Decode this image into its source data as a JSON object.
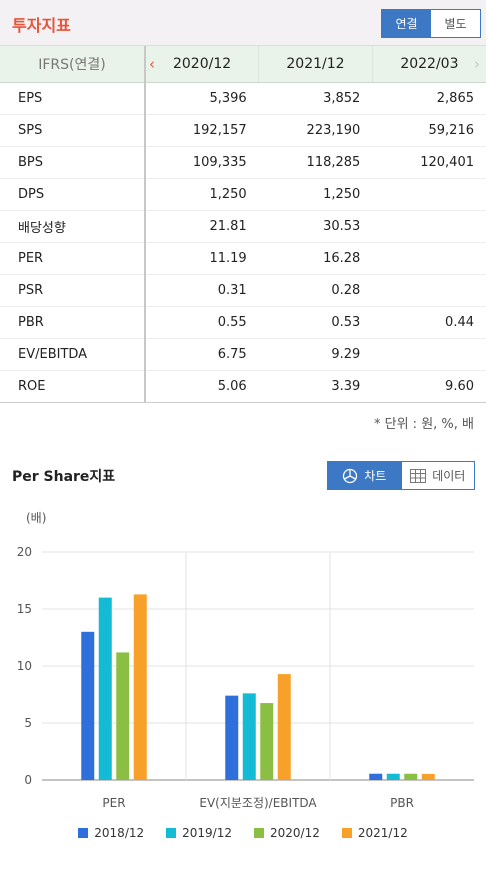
{
  "header": {
    "title": "투자지표",
    "toggle": {
      "consolidated": "연결",
      "separate": "별도"
    }
  },
  "table": {
    "label_header": "IFRS(연결)",
    "columns": [
      "2020/12",
      "2021/12",
      "2022/03"
    ],
    "rows": [
      {
        "label": "EPS",
        "values": [
          "5,396",
          "3,852",
          "2,865"
        ]
      },
      {
        "label": "SPS",
        "values": [
          "192,157",
          "223,190",
          "59,216"
        ]
      },
      {
        "label": "BPS",
        "values": [
          "109,335",
          "118,285",
          "120,401"
        ]
      },
      {
        "label": "DPS",
        "values": [
          "1,250",
          "1,250",
          ""
        ]
      },
      {
        "label": "배당성향",
        "values": [
          "21.81",
          "30.53",
          ""
        ]
      },
      {
        "label": "PER",
        "values": [
          "11.19",
          "16.28",
          ""
        ]
      },
      {
        "label": "PSR",
        "values": [
          "0.31",
          "0.28",
          ""
        ]
      },
      {
        "label": "PBR",
        "values": [
          "0.55",
          "0.53",
          "0.44"
        ]
      },
      {
        "label": "EV/EBITDA",
        "values": [
          "6.75",
          "9.29",
          ""
        ]
      },
      {
        "label": "ROE",
        "values": [
          "5.06",
          "3.39",
          "9.60"
        ]
      }
    ],
    "unit_note": "* 단위 : 원, %, 배"
  },
  "chart_section": {
    "title": "Per Share지표",
    "chart_label": "차트",
    "data_label": "데이터"
  },
  "chart_data": {
    "type": "bar",
    "ylabel": "(배)",
    "ylim": [
      0,
      20
    ],
    "yticks": [
      "0",
      "5",
      "10",
      "15",
      "20"
    ],
    "grid": true,
    "legend_position": "bottom",
    "categories": [
      "PER",
      "EV(지분조정)/EBITDA",
      "PBR"
    ],
    "series": [
      {
        "name": "2018/12",
        "color": "#2e6fdb",
        "values": [
          13.0,
          7.4,
          0.55
        ]
      },
      {
        "name": "2019/12",
        "color": "#13bcd4",
        "values": [
          16.0,
          7.6,
          0.55
        ]
      },
      {
        "name": "2020/12",
        "color": "#8bbf44",
        "values": [
          11.19,
          6.75,
          0.55
        ]
      },
      {
        "name": "2021/12",
        "color": "#f8a12a",
        "values": [
          16.28,
          9.29,
          0.53
        ]
      }
    ]
  }
}
